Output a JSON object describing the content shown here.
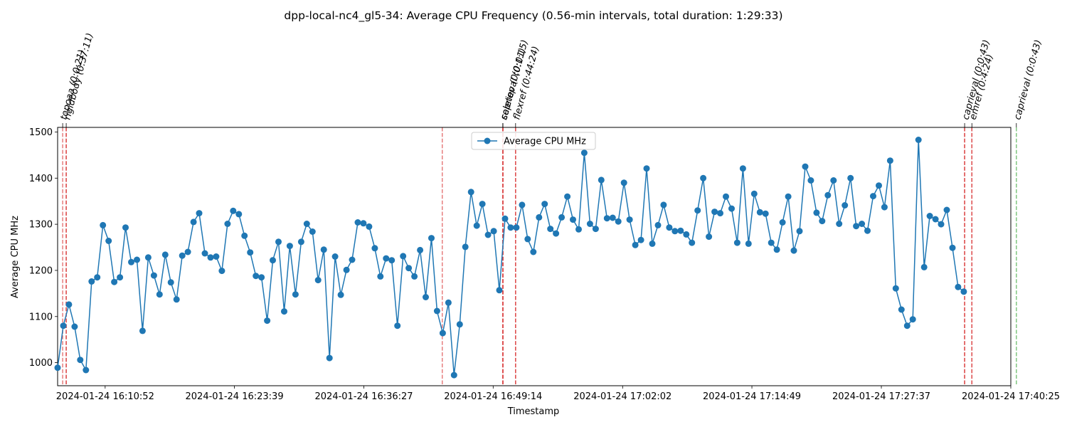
{
  "chart_data": {
    "type": "line",
    "title": "dpp-local-nc4_gl5-34: Average CPU Frequency (0.56-min intervals, total duration: 1:29:33)",
    "xlabel": "Timestamp",
    "ylabel": "Average CPU MHz",
    "legend": {
      "placement": "top-center",
      "entries": [
        "Average CPU MHz"
      ]
    },
    "grid": false,
    "x_start": "2024-01-24 16:06:10",
    "x_interval_seconds": 33.6,
    "xlim": [
      "2024-01-24 16:06:10",
      "2024-01-24 17:40:25"
    ],
    "ylim": [
      950,
      1510
    ],
    "x_ticks": [
      "2024-01-24 16:10:52",
      "2024-01-24 16:23:39",
      "2024-01-24 16:36:27",
      "2024-01-24 16:49:14",
      "2024-01-24 17:02:02",
      "2024-01-24 17:14:49",
      "2024-01-24 17:27:37",
      "2024-01-24 17:40:25"
    ],
    "y_ticks": [
      1000,
      1100,
      1200,
      1300,
      1400,
      1500
    ],
    "series": [
      {
        "name": "Average CPU MHz",
        "color": "#1f77b4",
        "values": [
          989,
          1080,
          1126,
          1078,
          1006,
          984,
          1176,
          1185,
          1298,
          1264,
          1175,
          1185,
          1293,
          1218,
          1223,
          1069,
          1228,
          1189,
          1148,
          1234,
          1174,
          1137,
          1232,
          1240,
          1305,
          1324,
          1237,
          1228,
          1230,
          1199,
          1301,
          1329,
          1322,
          1275,
          1239,
          1188,
          1185,
          1091,
          1222,
          1262,
          1111,
          1253,
          1148,
          1262,
          1301,
          1284,
          1179,
          1245,
          1010,
          1230,
          1147,
          1201,
          1223,
          1304,
          1302,
          1295,
          1248,
          1187,
          1226,
          1222,
          1080,
          1231,
          1205,
          1187,
          1244,
          1142,
          1270,
          1112,
          1064,
          1130,
          973,
          1083,
          1251,
          1370,
          1297,
          1344,
          1277,
          1285,
          1157,
          1312,
          1293,
          1293,
          1342,
          1268,
          1240,
          1315,
          1344,
          1290,
          1280,
          1315,
          1360,
          1310,
          1289,
          1455,
          1301,
          1290,
          1396,
          1313,
          1314,
          1306,
          1390,
          1310,
          1255,
          1266,
          1421,
          1258,
          1298,
          1342,
          1293,
          1285,
          1286,
          1278,
          1260,
          1330,
          1400,
          1273,
          1327,
          1324,
          1360,
          1334,
          1260,
          1421,
          1258,
          1366,
          1326,
          1323,
          1260,
          1245,
          1304,
          1360,
          1243,
          1285,
          1425,
          1395,
          1325,
          1307,
          1363,
          1395,
          1301,
          1341,
          1400,
          1296,
          1301,
          1286,
          1361,
          1384,
          1337,
          1438,
          1161,
          1115,
          1080,
          1094,
          1483,
          1207,
          1318,
          1311,
          1300,
          1331,
          1249,
          1164,
          1154
        ]
      }
    ],
    "annotations": [
      {
        "label": "topoaa (0:0:21)",
        "start": "2024-01-24 16:06:40",
        "end": "2024-01-24 16:07:01",
        "color": "#d62728"
      },
      {
        "label": "rigidbody (0:37:11)",
        "start": "2024-01-24 16:07:01",
        "end": "2024-01-24 16:44:12",
        "color": "#d62728"
      },
      {
        "label": "seletop (0:0:01)",
        "start": "2024-01-24 16:50:11",
        "end": "2024-01-24 16:50:12",
        "color": "#d62728"
      },
      {
        "label": "caprieval (0:1:15)",
        "start": "2024-01-24 16:50:12",
        "end": "2024-01-24 16:51:27",
        "color": "#d62728"
      },
      {
        "label": "flexref (0:44:24)",
        "start": "2024-01-24 16:51:27",
        "end": "2024-01-24 17:35:51",
        "color": "#d62728"
      },
      {
        "label": "caprieval (0:0:43)",
        "start": "2024-01-24 17:35:51",
        "end": "2024-01-24 17:36:34",
        "color": "#d62728"
      },
      {
        "label": "emref (0:4:24)",
        "start": "2024-01-24 17:36:34",
        "end": "2024-01-24 17:40:58",
        "color": "#d62728"
      },
      {
        "label": "caprieval (0:0:43)",
        "start": "2024-01-24 17:40:58",
        "end": "2024-01-24 17:41:41",
        "color": "#2ca02c"
      }
    ]
  }
}
